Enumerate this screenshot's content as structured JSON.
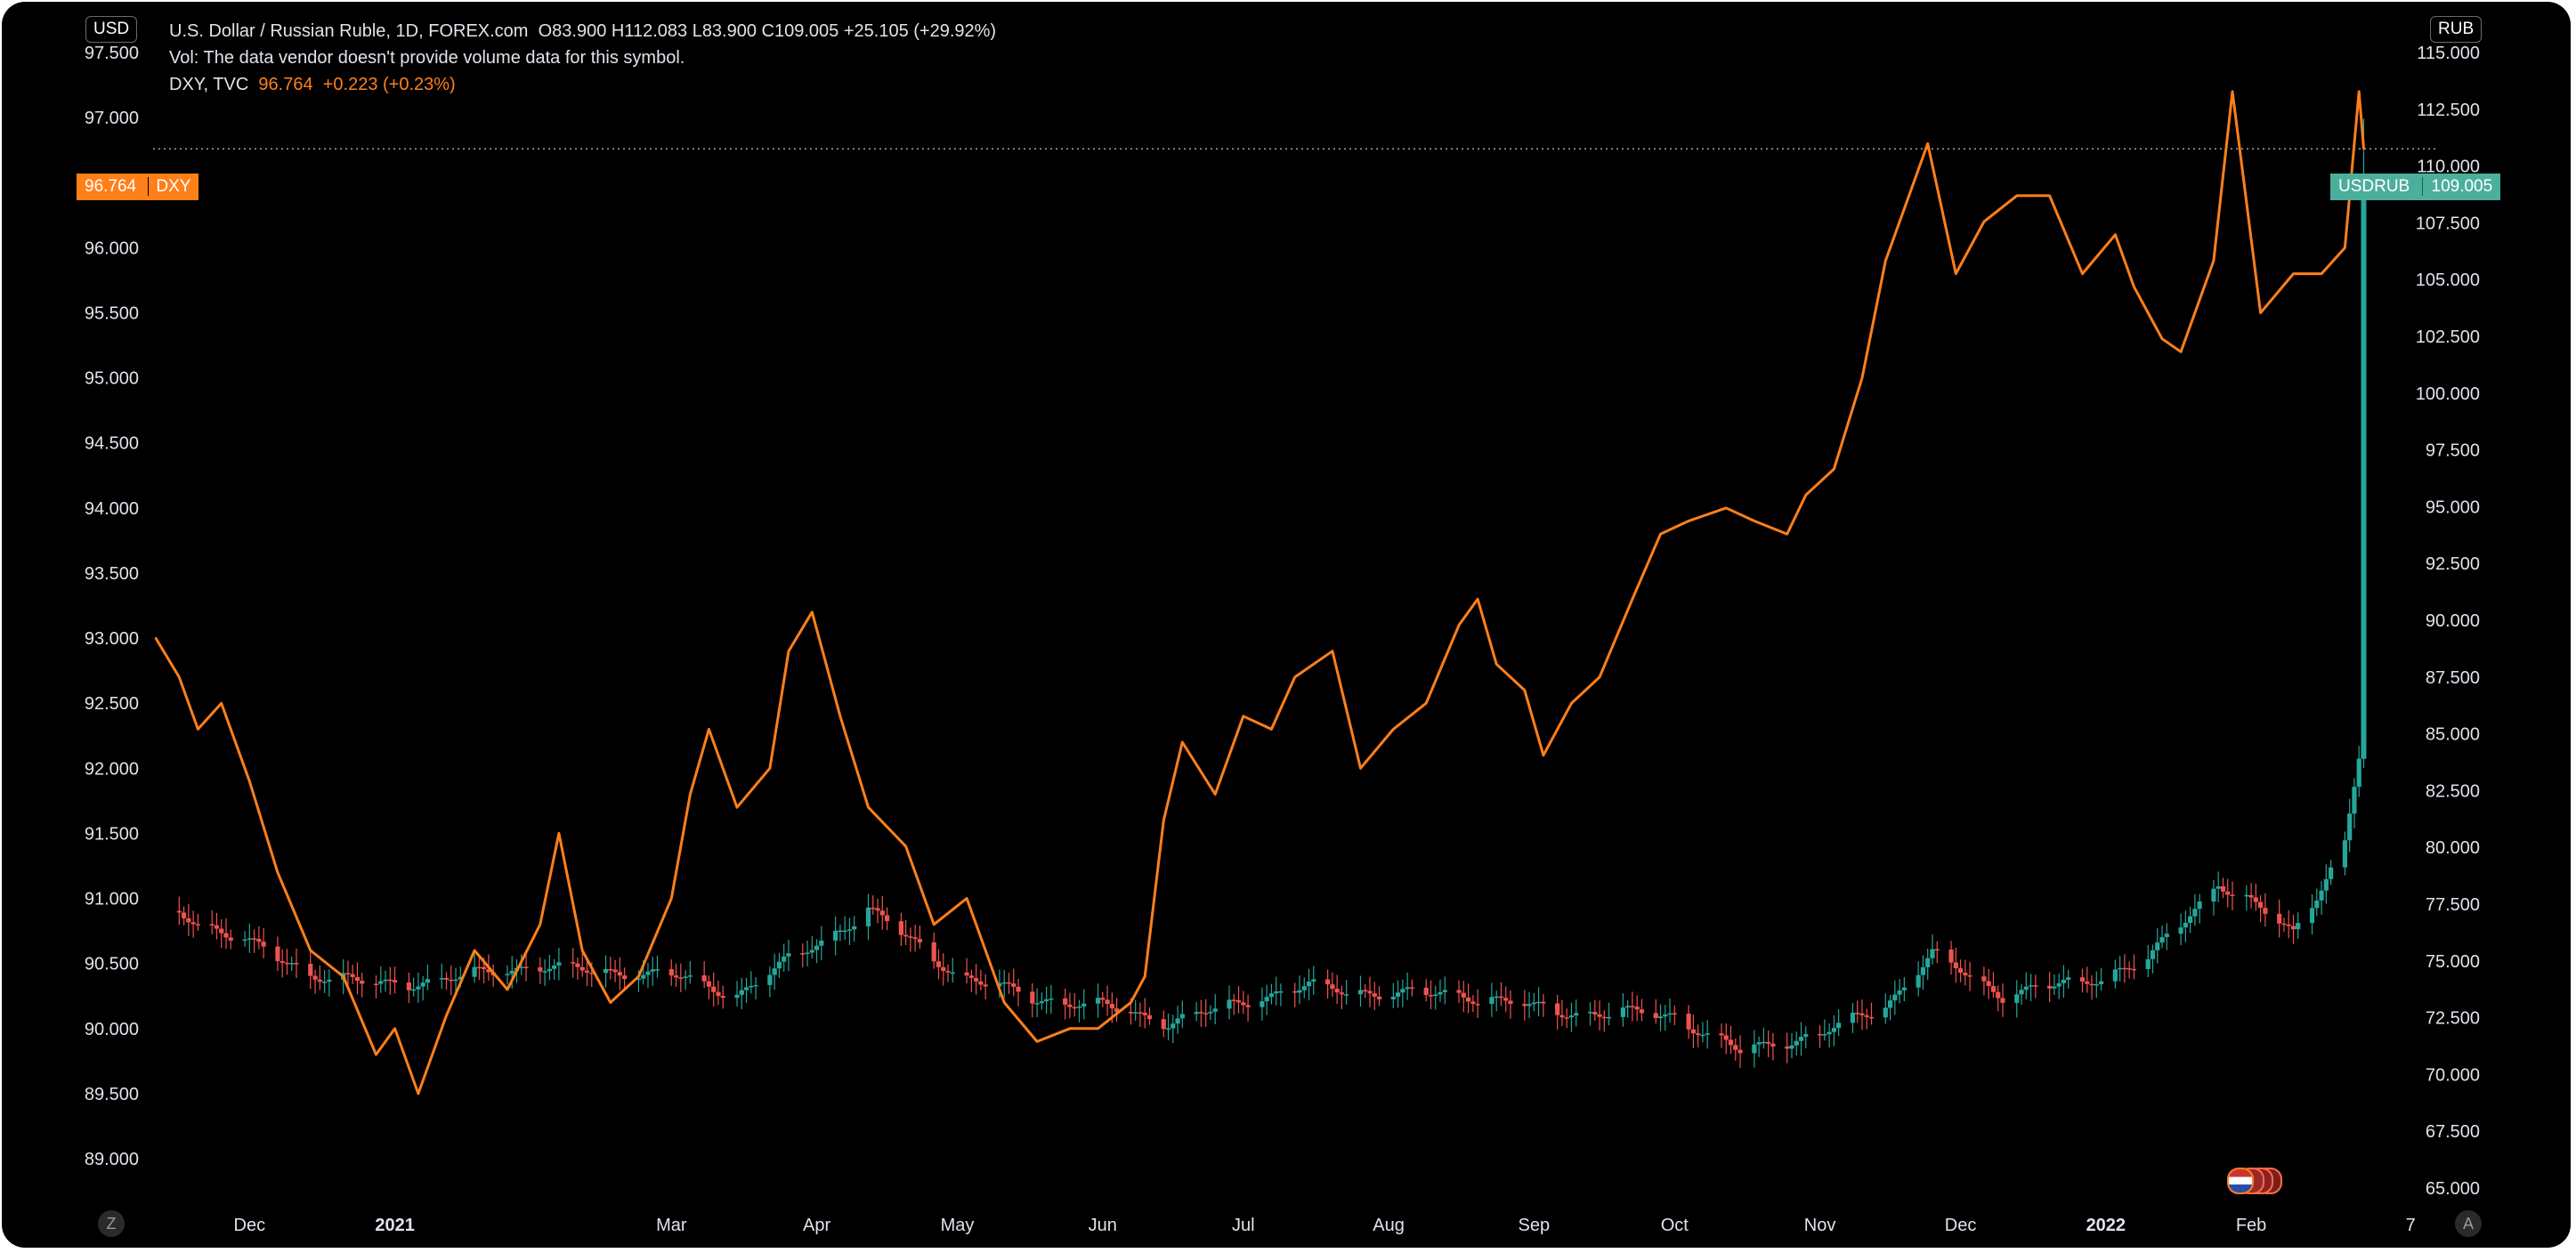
{
  "header": {
    "left_currency": "USD",
    "right_currency": "RUB",
    "symbol_title": "U.S. Dollar / Russian Ruble, 1D, FOREX.com",
    "ohlc": "O83.900  H112.083  L83.900  C109.005  +25.105 (+29.92%)",
    "volume_note": "Vol: The data vendor doesn't provide volume data for this symbol.",
    "overlay_symbol": "DXY, TVC",
    "overlay_value": "96.764",
    "overlay_change": "+0.223 (+0.23%)"
  },
  "labels": {
    "dxy_value": "96.764",
    "dxy_name": "DXY",
    "usdrub_name": "USDRUB",
    "usdrub_value": "109.005",
    "zoom_button": "Z",
    "auto_button": "A"
  },
  "colors": {
    "background": "#000000",
    "dxy_line": "#ff7f1a",
    "candle_up": "#26a69a",
    "candle_down": "#ef5350",
    "text": "#e0e3eb",
    "usdrub_label_bg": "#4caf9c",
    "dxy_label_bg": "#ff7f1a"
  },
  "chart_data": {
    "type": "line",
    "title": "U.S. Dollar / Russian Ruble, 1D, FOREX.com",
    "x_tick_labels": [
      "Dec",
      "2021",
      "Mar",
      "Apr",
      "May",
      "Jun",
      "Jul",
      "Aug",
      "Sep",
      "Oct",
      "Nov",
      "Dec",
      "2022",
      "Feb",
      "7"
    ],
    "left_axis": {
      "label": "DXY",
      "range": [
        88.9,
        97.5
      ],
      "ticks": [
        "89.000",
        "89.500",
        "90.000",
        "90.500",
        "91.000",
        "91.500",
        "92.000",
        "92.500",
        "93.000",
        "93.500",
        "94.000",
        "94.500",
        "95.000",
        "95.500",
        "96.000",
        "96.500",
        "97.000",
        "97.500"
      ]
    },
    "right_axis": {
      "label": "USDRUB",
      "range": [
        64.9,
        115.0
      ],
      "ticks": [
        "65.000",
        "67.500",
        "70.000",
        "72.500",
        "75.000",
        "77.500",
        "80.000",
        "82.500",
        "85.000",
        "87.500",
        "90.000",
        "92.500",
        "95.000",
        "97.500",
        "100.000",
        "102.500",
        "105.000",
        "107.500",
        "110.000",
        "112.500",
        "115.000"
      ]
    },
    "series": [
      {
        "name": "DXY, TVC",
        "type": "line",
        "axis": "left",
        "x": [
          "2020-11-11",
          "2020-11-16",
          "2020-11-20",
          "2020-11-25",
          "2020-12-01",
          "2020-12-07",
          "2020-12-14",
          "2020-12-21",
          "2020-12-28",
          "2021-01-01",
          "2021-01-06",
          "2021-01-12",
          "2021-01-18",
          "2021-01-25",
          "2021-02-01",
          "2021-02-05",
          "2021-02-10",
          "2021-02-16",
          "2021-02-22",
          "2021-03-01",
          "2021-03-05",
          "2021-03-09",
          "2021-03-15",
          "2021-03-22",
          "2021-03-26",
          "2021-03-31",
          "2021-04-06",
          "2021-04-12",
          "2021-04-20",
          "2021-04-26",
          "2021-05-03",
          "2021-05-11",
          "2021-05-18",
          "2021-05-25",
          "2021-05-31",
          "2021-06-07",
          "2021-06-10",
          "2021-06-14",
          "2021-06-18",
          "2021-06-25",
          "2021-07-01",
          "2021-07-07",
          "2021-07-12",
          "2021-07-20",
          "2021-07-26",
          "2021-08-02",
          "2021-08-09",
          "2021-08-16",
          "2021-08-20",
          "2021-08-24",
          "2021-08-30",
          "2021-09-03",
          "2021-09-09",
          "2021-09-15",
          "2021-09-22",
          "2021-09-28",
          "2021-10-04",
          "2021-10-12",
          "2021-10-18",
          "2021-10-25",
          "2021-10-29",
          "2021-11-04",
          "2021-11-10",
          "2021-11-15",
          "2021-11-19",
          "2021-11-24",
          "2021-11-30",
          "2021-12-06",
          "2021-12-13",
          "2021-12-20",
          "2021-12-27",
          "2022-01-03",
          "2022-01-07",
          "2022-01-13",
          "2022-01-17",
          "2022-01-24",
          "2022-01-28",
          "2022-02-03",
          "2022-02-10",
          "2022-02-16",
          "2022-02-21",
          "2022-02-24",
          "2022-02-25"
        ],
        "values": [
          93.0,
          92.7,
          92.3,
          92.5,
          91.9,
          91.2,
          90.6,
          90.4,
          89.8,
          90.0,
          89.5,
          90.1,
          90.6,
          90.3,
          90.8,
          91.5,
          90.6,
          90.2,
          90.4,
          91.0,
          91.8,
          92.3,
          91.7,
          92.0,
          92.9,
          93.2,
          92.4,
          91.7,
          91.4,
          90.8,
          91.0,
          90.2,
          89.9,
          90.0,
          90.0,
          90.2,
          90.4,
          91.6,
          92.2,
          91.8,
          92.4,
          92.3,
          92.7,
          92.9,
          92.0,
          92.3,
          92.5,
          93.1,
          93.3,
          92.8,
          92.6,
          92.1,
          92.5,
          92.7,
          93.3,
          93.8,
          93.9,
          94.0,
          93.9,
          93.8,
          94.1,
          94.3,
          95.0,
          95.9,
          96.3,
          96.8,
          95.8,
          96.2,
          96.4,
          96.4,
          95.8,
          96.1,
          95.7,
          95.3,
          95.2,
          95.9,
          97.2,
          95.5,
          95.8,
          95.8,
          96.0,
          97.2,
          96.76
        ]
      },
      {
        "name": "USDRUB",
        "type": "candlestick",
        "axis": "right",
        "x": [
          "2020-11-16",
          "2020-11-30",
          "2020-12-14",
          "2020-12-28",
          "2021-01-15",
          "2021-02-01",
          "2021-02-15",
          "2021-03-01",
          "2021-03-15",
          "2021-04-01",
          "2021-04-12",
          "2021-05-03",
          "2021-05-17",
          "2021-06-01",
          "2021-06-15",
          "2021-07-01",
          "2021-07-15",
          "2021-08-02",
          "2021-08-16",
          "2021-09-01",
          "2021-09-15",
          "2021-10-01",
          "2021-10-15",
          "2021-11-01",
          "2021-11-15",
          "2021-11-25",
          "2021-12-10",
          "2021-12-27",
          "2022-01-10",
          "2022-01-25",
          "2022-02-10",
          "2022-02-21",
          "2022-02-24",
          "2022-02-25"
        ],
        "values": [
          77.2,
          75.8,
          74.5,
          73.9,
          74.3,
          74.8,
          74.5,
          74.4,
          73.5,
          75.8,
          77.2,
          74.2,
          73.4,
          73.0,
          72.3,
          73.2,
          73.9,
          73.5,
          73.6,
          72.9,
          72.7,
          72.6,
          71.0,
          71.8,
          73.0,
          75.3,
          73.5,
          74.1,
          75.0,
          78.5,
          76.2,
          80.2,
          84.0,
          109.0
        ]
      }
    ],
    "legend": "top-left",
    "grid": false
  }
}
